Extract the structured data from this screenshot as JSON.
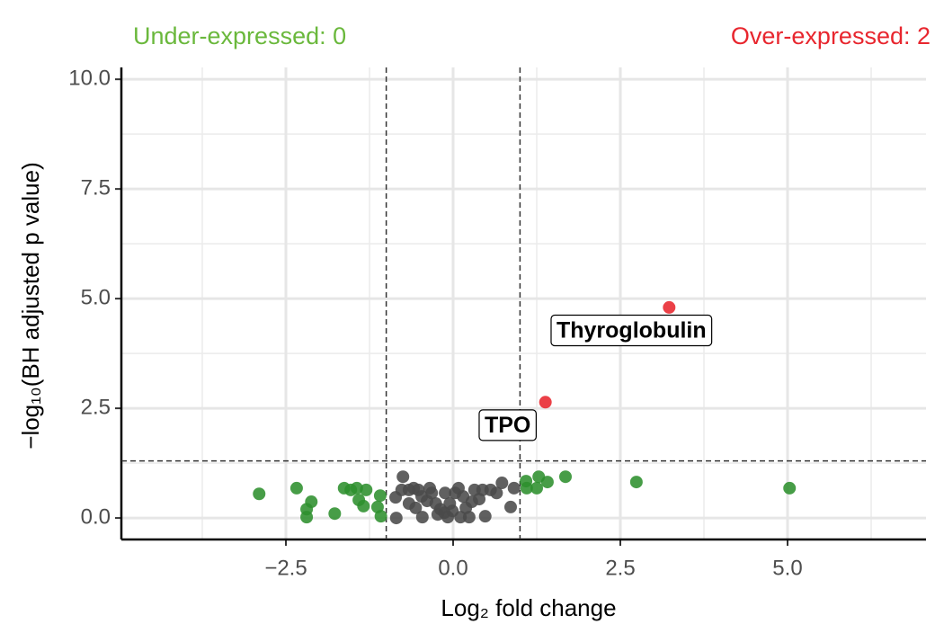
{
  "chart_data": {
    "type": "scatter",
    "title_left": "Under-expressed: 0",
    "title_left_color": "#6ab83c",
    "title_right": "Over-expressed: 2",
    "title_right_color": "#e8262e",
    "xlabel": "Log₂ fold change",
    "ylabel": "−log₁₀(BH adjusted p value)",
    "xlim": [
      -4.96,
      7.07
    ],
    "ylim": [
      -0.49,
      10.27
    ],
    "xticks": [
      {
        "value": -2.5,
        "label": "−2.5"
      },
      {
        "value": 0,
        "label": "0.0"
      },
      {
        "value": 2.5,
        "label": "2.5"
      },
      {
        "value": 5,
        "label": "5.0"
      }
    ],
    "yticks": [
      {
        "value": 0,
        "label": "0.0"
      },
      {
        "value": 2.5,
        "label": "2.5"
      },
      {
        "value": 5,
        "label": "5.0"
      },
      {
        "value": 7.5,
        "label": "7.5"
      },
      {
        "value": 10,
        "label": "10.0"
      }
    ],
    "xminor": [
      -3.75,
      -1.25,
      1.25,
      3.75,
      6.25
    ],
    "yminor": [
      1.25,
      3.75,
      6.25,
      8.75
    ],
    "grid": true,
    "vlines": [
      -1,
      1
    ],
    "hlines": [
      1.3
    ],
    "series": [
      {
        "color": "#e8262e",
        "x": [
          3.23,
          1.38
        ],
        "values": [
          4.8,
          2.64
        ],
        "labels": [
          "Thyroglobulin",
          "TPO"
        ]
      },
      {
        "color": "#2e8f2e",
        "x": [
          -2.9,
          -2.34,
          -2.12,
          -2.19,
          -2.19,
          -1.77,
          -1.63,
          -1.53,
          -1.44,
          -1.41,
          -1.3,
          -1.34,
          -1.13,
          -1.09,
          -1.08,
          1.09,
          1.1,
          1.25,
          1.28,
          1.41,
          1.68,
          2.74,
          5.03
        ],
        "values": [
          0.55,
          0.68,
          0.37,
          0.2,
          0.02,
          0.1,
          0.68,
          0.64,
          0.68,
          0.41,
          0.64,
          0.27,
          0.25,
          0.51,
          0.04,
          0.84,
          0.68,
          0.68,
          0.94,
          0.82,
          0.94,
          0.82,
          0.68
        ]
      },
      {
        "color": "#4a4a4a",
        "x": [
          -0.75,
          -0.85,
          -0.86,
          -0.77,
          -0.66,
          -0.59,
          -0.52,
          -0.47,
          -0.39,
          -0.46,
          -0.56,
          -0.32,
          -0.26,
          -0.19,
          -0.13,
          -0.08,
          -0.23,
          -0.05,
          0.03,
          0.08,
          0.15,
          0.19,
          0.24,
          0.32,
          0.39,
          0.44,
          0.48,
          0.56,
          0.65,
          0.73,
          0.86,
          0.91,
          -0.66,
          -0.35,
          -0.12,
          0.11,
          0.28,
          -0.01
        ],
        "values": [
          0.94,
          0,
          0.47,
          0.64,
          0.64,
          0.68,
          0.64,
          0.49,
          0.39,
          0.02,
          0.23,
          0.57,
          0.33,
          0.2,
          0.12,
          0.02,
          0.08,
          0.33,
          0.57,
          0.68,
          0.49,
          0.23,
          0.02,
          0.64,
          0.43,
          0.64,
          0.04,
          0.64,
          0.57,
          0.8,
          0.25,
          0.68,
          0.33,
          0.68,
          0.57,
          0.02,
          0.37,
          0.16
        ]
      }
    ]
  }
}
